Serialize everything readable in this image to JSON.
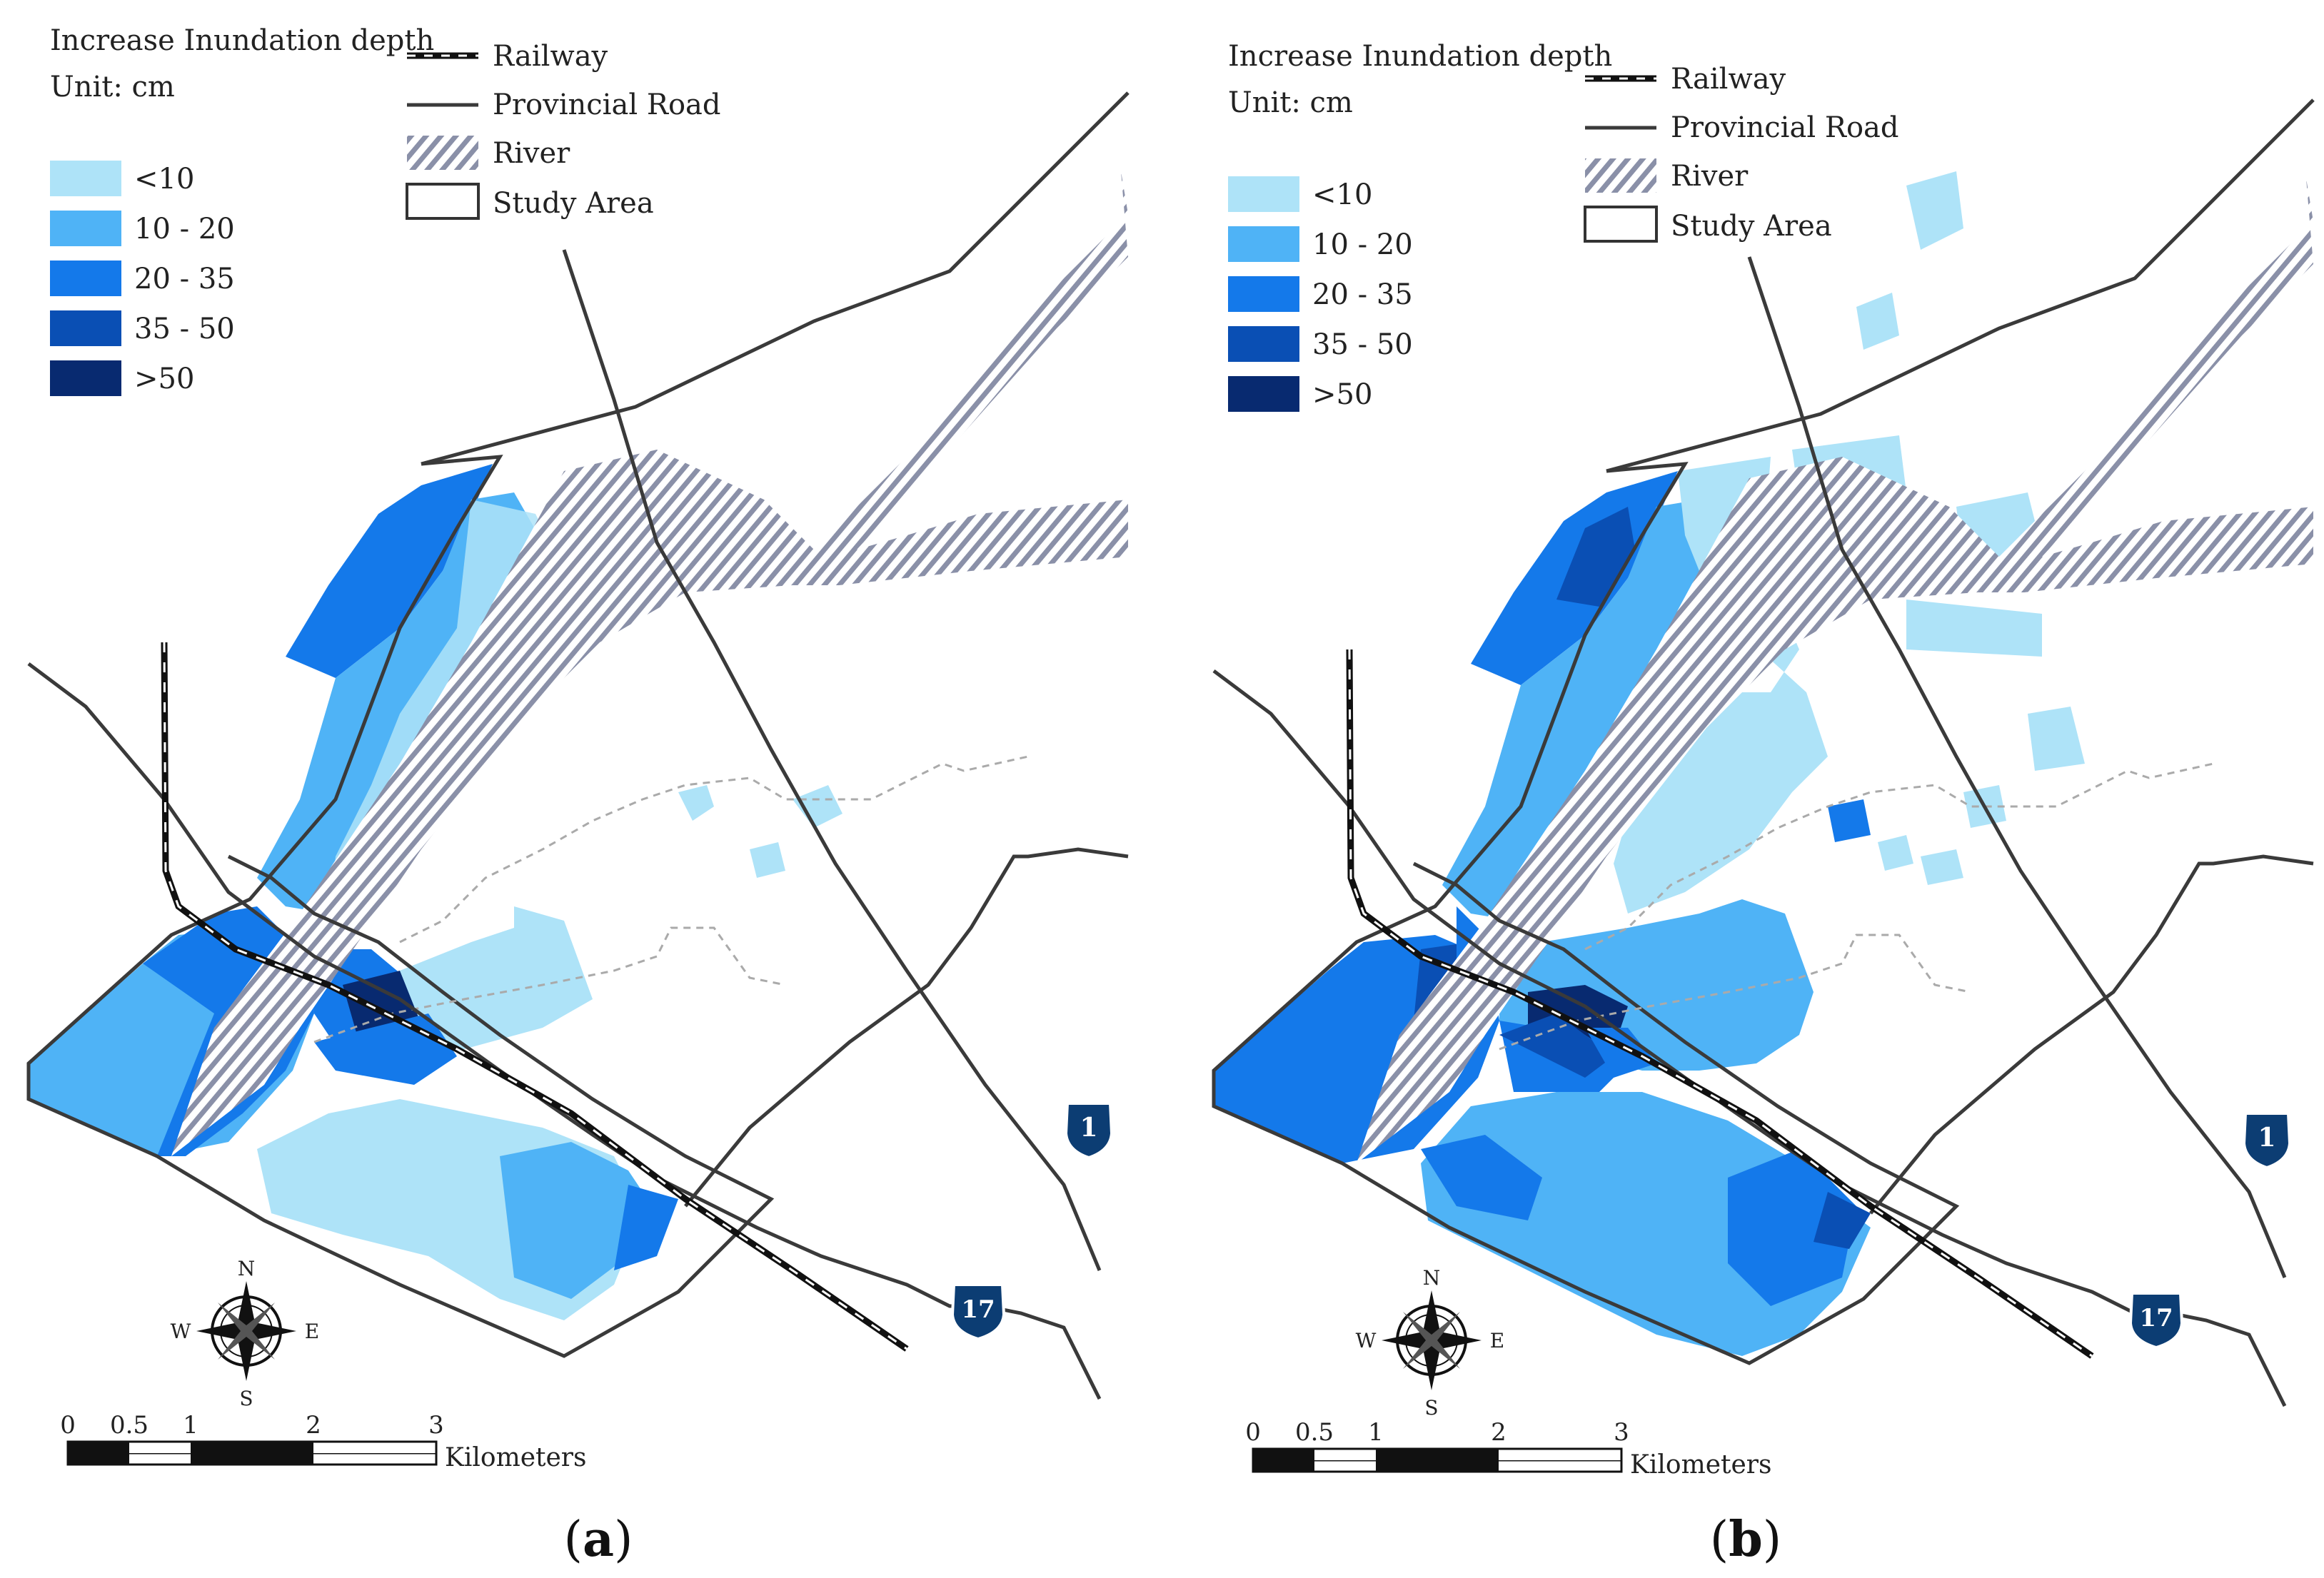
{
  "legend": {
    "title": "Increase Inundation depth",
    "unit": "Unit: cm",
    "classes": [
      {
        "label": "<10",
        "color": "#aee3f8"
      },
      {
        "label": "10 - 20",
        "color": "#4fb3f6"
      },
      {
        "label": "20 - 35",
        "color": "#1479ea"
      },
      {
        "label": "35 - 50",
        "color": "#0a4fb4"
      },
      {
        "label": ">50",
        "color": "#082a70"
      }
    ]
  },
  "layers": {
    "railway": "Railway",
    "road": "Provincial Road",
    "river": "River",
    "study_area": "Study Area"
  },
  "compass": {
    "n": "N",
    "s": "S",
    "e": "E",
    "w": "W"
  },
  "scale_bar": {
    "ticks": [
      "0",
      "0.5",
      "1",
      "2",
      "3"
    ],
    "unit": "Kilometers"
  },
  "highways": {
    "h1": "1",
    "h17": "17"
  },
  "panels": [
    {
      "label_open": "(",
      "label_letter": "a",
      "label_close": ")"
    },
    {
      "label_open": "(",
      "label_letter": "b",
      "label_close": ")"
    }
  ],
  "colors": {
    "river_stripe": "#8a90a8",
    "road": "#3a3a3a",
    "shield": "#0c3d73"
  }
}
